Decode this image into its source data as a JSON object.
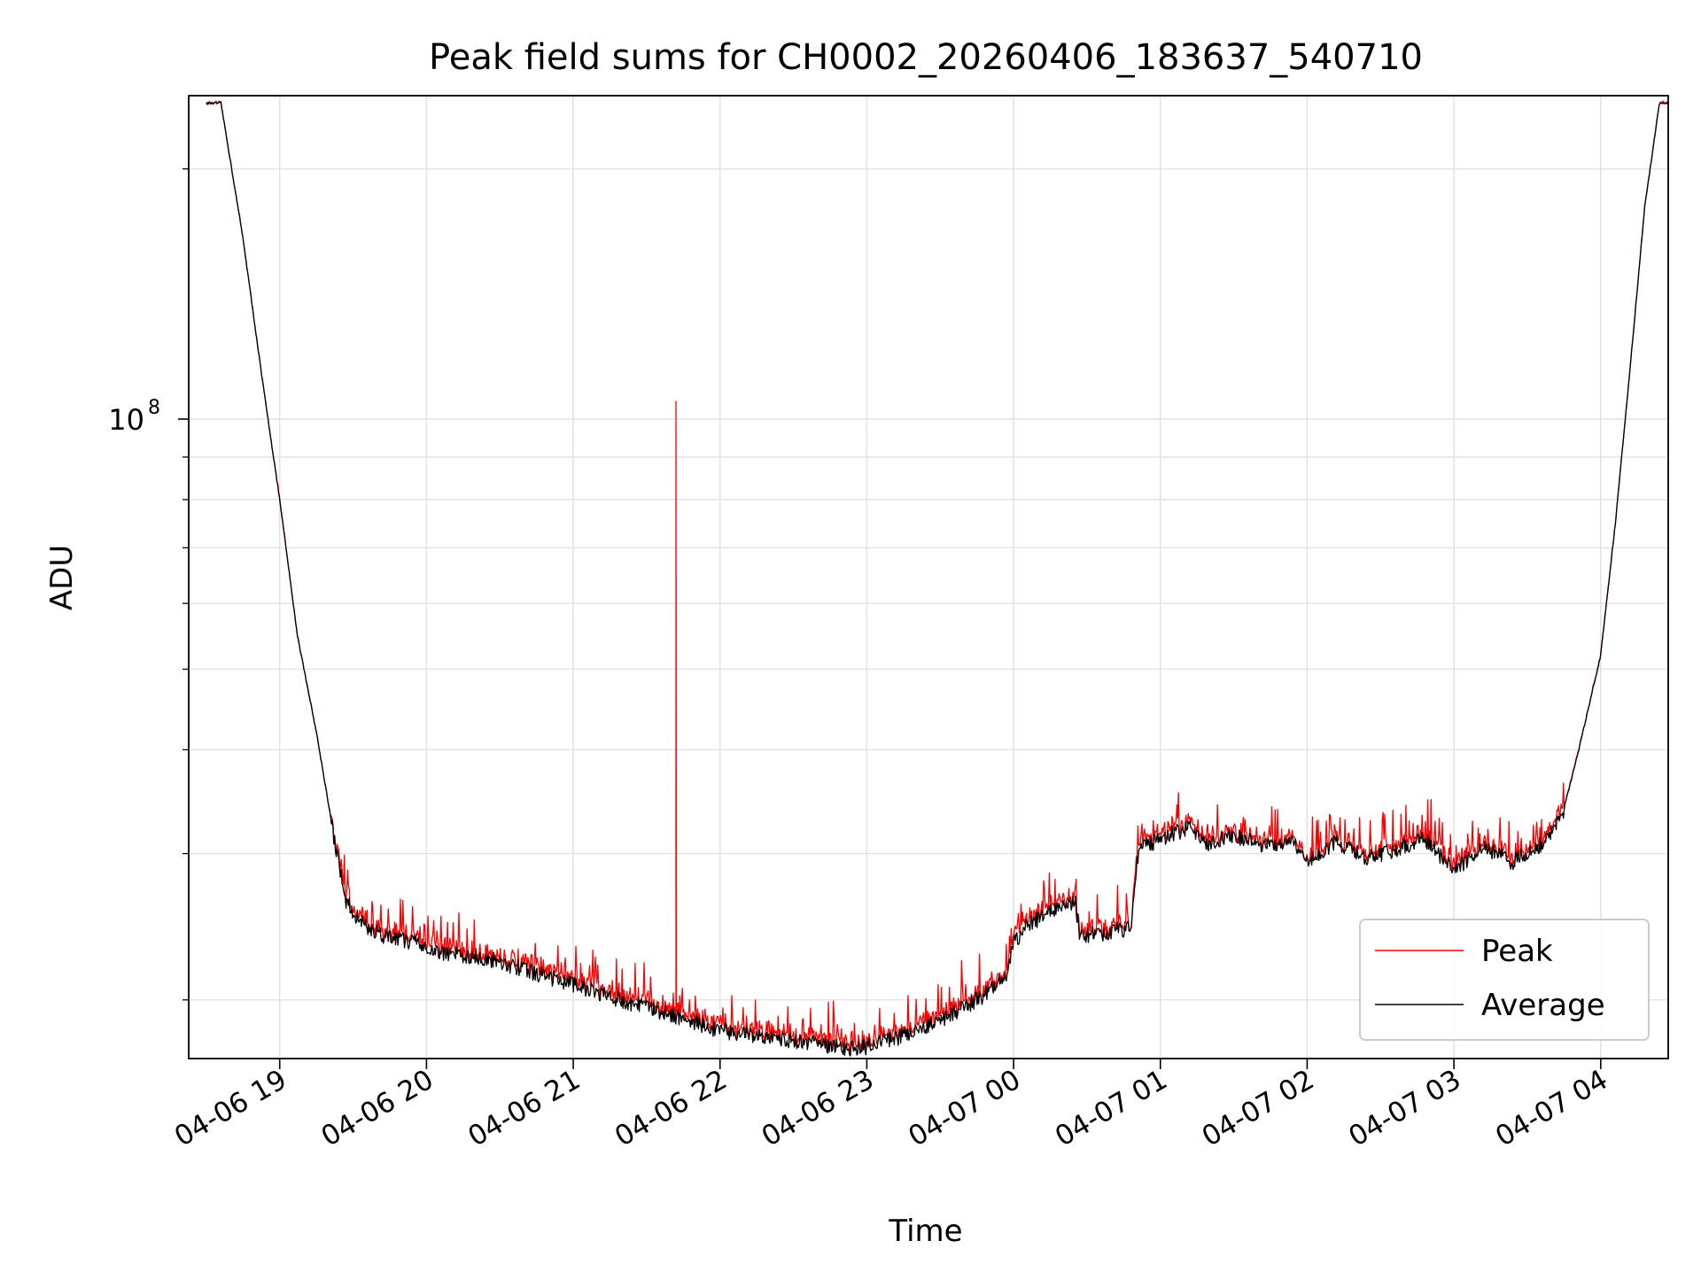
{
  "chart_data": {
    "type": "line",
    "title": "Peak field sums for CH0002_20260406_183637_540710",
    "xlabel": "Time",
    "ylabel": "ADU",
    "yscale": "log",
    "grid": true,
    "legend_position": "lower-right",
    "x_unit": "hours since 04-06 18:00",
    "xlim": [
      18.38,
      28.46
    ],
    "ylim": [
      17000000,
      245000000
    ],
    "x_ticks": [
      {
        "value": 19,
        "label": "04-06 19"
      },
      {
        "value": 20,
        "label": "04-06 20"
      },
      {
        "value": 21,
        "label": "04-06 21"
      },
      {
        "value": 22,
        "label": "04-06 22"
      },
      {
        "value": 23,
        "label": "04-06 23"
      },
      {
        "value": 24,
        "label": "04-07 00"
      },
      {
        "value": 25,
        "label": "04-07 01"
      },
      {
        "value": 26,
        "label": "04-07 02"
      },
      {
        "value": 27,
        "label": "04-07 03"
      },
      {
        "value": 28,
        "label": "04-07 04"
      }
    ],
    "y_major_ticks": [
      {
        "value": 100000000,
        "label_base": "10",
        "label_exp": "8"
      }
    ],
    "y_minor_ticks": [
      20000000,
      30000000,
      40000000,
      50000000,
      60000000,
      70000000,
      80000000,
      90000000,
      200000000
    ],
    "series": [
      {
        "name": "Average",
        "color": "#000000",
        "points": [
          [
            18.5,
            240000000
          ],
          [
            18.6,
            240000000
          ],
          [
            18.75,
            165000000
          ],
          [
            18.88,
            112000000
          ],
          [
            19.0,
            80000000
          ],
          [
            19.12,
            55000000
          ],
          [
            19.25,
            42000000
          ],
          [
            19.35,
            33000000
          ],
          [
            19.45,
            26500000
          ],
          [
            19.55,
            25000000
          ],
          [
            19.7,
            24000000
          ],
          [
            19.9,
            23600000
          ],
          [
            20.1,
            23000000
          ],
          [
            20.3,
            22700000
          ],
          [
            20.5,
            22400000
          ],
          [
            20.7,
            21800000
          ],
          [
            21.0,
            21000000
          ],
          [
            21.3,
            20200000
          ],
          [
            21.6,
            19500000
          ],
          [
            21.8,
            19000000
          ],
          [
            22.0,
            18500000
          ],
          [
            22.3,
            18200000
          ],
          [
            22.6,
            17900000
          ],
          [
            22.85,
            17600000
          ],
          [
            23.0,
            17700000
          ],
          [
            23.2,
            18100000
          ],
          [
            23.5,
            19000000
          ],
          [
            23.8,
            20400000
          ],
          [
            23.95,
            21600000
          ],
          [
            24.0,
            23600000
          ],
          [
            24.1,
            24800000
          ],
          [
            24.25,
            25600000
          ],
          [
            24.42,
            26500000
          ],
          [
            24.45,
            24000000
          ],
          [
            24.6,
            24200000
          ],
          [
            24.8,
            24600000
          ],
          [
            24.85,
            30500000
          ],
          [
            25.0,
            31500000
          ],
          [
            25.2,
            32500000
          ],
          [
            25.3,
            31000000
          ],
          [
            25.5,
            31800000
          ],
          [
            25.7,
            30800000
          ],
          [
            25.9,
            31200000
          ],
          [
            26.0,
            29500000
          ],
          [
            26.2,
            31200000
          ],
          [
            26.4,
            29800000
          ],
          [
            26.6,
            30500000
          ],
          [
            26.8,
            31500000
          ],
          [
            27.0,
            28800000
          ],
          [
            27.2,
            30800000
          ],
          [
            27.4,
            29500000
          ],
          [
            27.6,
            31000000
          ],
          [
            27.75,
            34000000
          ],
          [
            27.85,
            40000000
          ],
          [
            28.0,
            52000000
          ],
          [
            28.1,
            75000000
          ],
          [
            28.2,
            115000000
          ],
          [
            28.3,
            180000000
          ],
          [
            28.4,
            240000000
          ],
          [
            28.46,
            240000000
          ]
        ]
      },
      {
        "name": "Peak",
        "color": "#ff0000",
        "spike": {
          "x": 21.7,
          "y": 105000000
        }
      }
    ]
  }
}
